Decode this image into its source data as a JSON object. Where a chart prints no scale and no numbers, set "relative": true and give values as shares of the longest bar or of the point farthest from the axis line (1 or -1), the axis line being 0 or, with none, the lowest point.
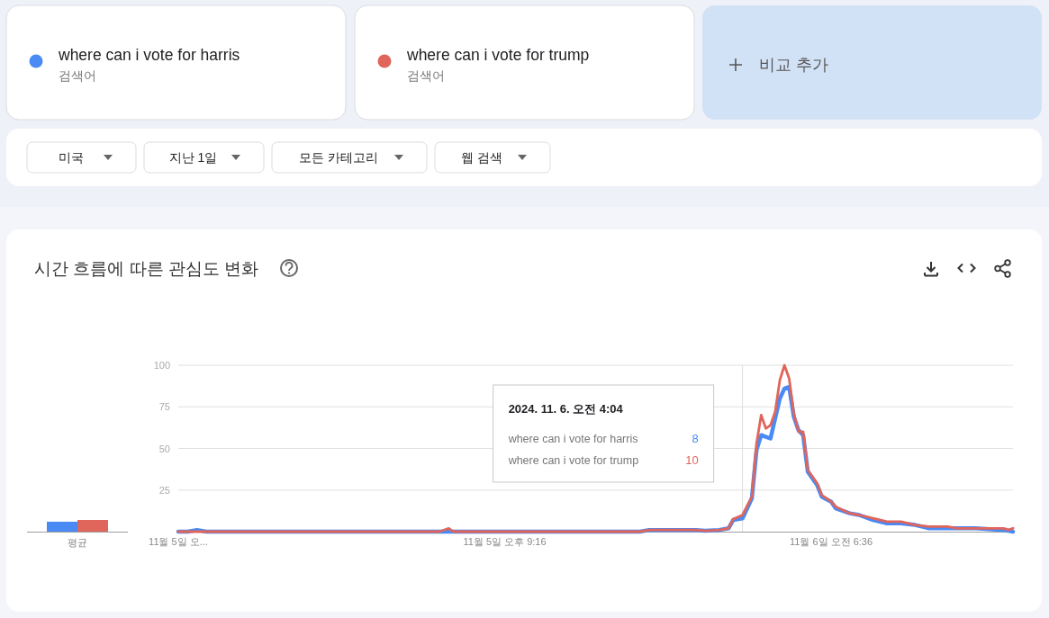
{
  "chart_data": [
    {
      "type": "bar",
      "categories": [
        "평균"
      ],
      "relative": true,
      "series": [
        {
          "color": "#4a8af4",
          "values": [
            0.85
          ]
        },
        {
          "color": "#e0655b",
          "values": [
            1
          ]
        }
      ]
    },
    {
      "type": "line",
      "title": "시간 흐름에 따른 관심도 변화",
      "legend": "top",
      "grid": "y",
      "x": [
        "2024-11-05T11:56",
        "2024-11-05T12:12",
        "2024-11-05T12:28",
        "2024-11-05T12:44",
        "2024-11-05T19:24",
        "2024-11-05T19:40",
        "2024-11-05T19:48",
        "2024-11-06T01:08",
        "2024-11-06T01:24",
        "2024-11-06T02:44",
        "2024-11-06T03:00",
        "2024-11-06T03:24",
        "2024-11-06T03:40",
        "2024-11-06T03:48",
        "2024-11-06T04:04",
        "2024-11-06T04:20",
        "2024-11-06T04:28",
        "2024-11-06T04:36",
        "2024-11-06T04:44",
        "2024-11-06T04:52",
        "2024-11-06T05:00",
        "2024-11-06T05:08",
        "2024-11-06T05:16",
        "2024-11-06T05:24",
        "2024-11-06T05:32",
        "2024-11-06T05:40",
        "2024-11-06T05:48",
        "2024-11-06T05:56",
        "2024-11-06T06:12",
        "2024-11-06T06:20",
        "2024-11-06T06:36",
        "2024-11-06T06:44",
        "2024-11-06T07:08",
        "2024-11-06T07:24",
        "2024-11-06T07:48",
        "2024-11-06T08:12",
        "2024-11-06T08:36",
        "2024-11-06T09:00",
        "2024-11-06T09:24",
        "2024-11-06T09:56",
        "2024-11-06T10:12",
        "2024-11-06T10:44",
        "2024-11-06T11:32",
        "2024-11-06T11:40",
        "2024-11-06T11:48"
      ],
      "xlim": [
        "2024-11-05T11:56",
        "2024-11-06T11:48"
      ],
      "xticks": [
        {
          "value": "2024-11-05T11:56",
          "label": "11월 5일 오..."
        },
        {
          "value": "2024-11-05T21:16",
          "label": "11월 5일 오후 9:16"
        },
        {
          "value": "2024-11-06T06:36",
          "label": "11월 6일 오전 6:36"
        }
      ],
      "ylim": [
        0,
        100
      ],
      "yticks": [
        25,
        50,
        75,
        100
      ],
      "series": [
        {
          "name": "where can i vote for harris",
          "color": "#4a8af4",
          "values": [
            0,
            0,
            1,
            0,
            0,
            0,
            0,
            0,
            1,
            1,
            0.5,
            1,
            2,
            7,
            8,
            20,
            49,
            58,
            57,
            56,
            68,
            80,
            86,
            87,
            69,
            61,
            58,
            36,
            28,
            21,
            18,
            14,
            11,
            10,
            7,
            5,
            5,
            4,
            2,
            2,
            2,
            2,
            1,
            0.5,
            0
          ]
        },
        {
          "name": "where can i vote for trump",
          "color": "#e0655b",
          "values": [
            0,
            0,
            0,
            0,
            0,
            2,
            0,
            0,
            1,
            1,
            0.5,
            1,
            2,
            7.5,
            10,
            21,
            53,
            70,
            62,
            64,
            72,
            91,
            100,
            92,
            71,
            60,
            60,
            37,
            29,
            22,
            18,
            15,
            11,
            10,
            8,
            6,
            6,
            4,
            3,
            3,
            2,
            2,
            2,
            1,
            2
          ]
        }
      ],
      "ref_lines": [
        {
          "axis": "x",
          "value": "2024-11-06T04:04",
          "color": "#dddddd"
        }
      ],
      "annotations": [
        "검색어",
        "검색어",
        "비교 추가",
        "미국",
        "지난 1일",
        "모든 카테고리",
        "웹 검색",
        "2024. 11. 6. 오전 4:04",
        "where can i vote for harris",
        "8",
        "where can i vote for trump",
        "10"
      ]
    }
  ]
}
